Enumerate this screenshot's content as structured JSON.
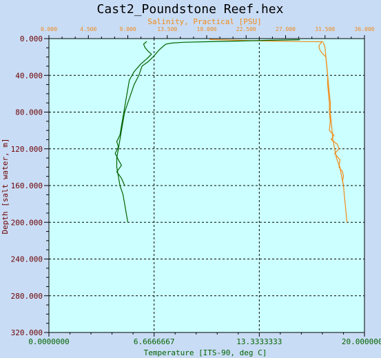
{
  "window": {
    "title": "Cast2_Poundstone Reef.hex"
  },
  "colors": {
    "background": "#c9dcf5",
    "plot_bg": "#ccffff",
    "salinity": "#f08a18",
    "temperature": "#006400",
    "depth_axis": "#6b0000",
    "title": "#000000"
  },
  "chart_data": {
    "type": "line",
    "title": "Cast2_Poundstone Reef.hex",
    "grid": true,
    "y_axis": {
      "label": "Depth [salt water, m]",
      "range": [
        0,
        320
      ],
      "inverted": true,
      "ticks": [
        0,
        40,
        80,
        120,
        160,
        200,
        240,
        280,
        320
      ],
      "tick_labels": [
        "0.000",
        "40.000",
        "80.000",
        "120.000",
        "160.000",
        "200.000",
        "240.000",
        "280.000",
        "320.000"
      ]
    },
    "x_axes": [
      {
        "id": "salinity",
        "position": "top",
        "label": "Salinity, Practical [PSU]",
        "range": [
          0,
          36
        ],
        "ticks": [
          0,
          4.5,
          9,
          13.5,
          18,
          22.5,
          27,
          31.5,
          36
        ],
        "tick_labels": [
          "0.000",
          "4.500",
          "9.000",
          "13.500",
          "18.000",
          "22.500",
          "27.000",
          "31.500",
          "36.000"
        ]
      },
      {
        "id": "temperature",
        "position": "bottom",
        "label": "Temperature [ITS-90, deg C]",
        "range": [
          0,
          20
        ],
        "ticks": [
          0,
          6.6666667,
          13.3333333,
          20
        ],
        "tick_labels": [
          "0.0000000",
          "6.6666667",
          "13.3333333",
          "20.0000000"
        ]
      }
    ],
    "series": [
      {
        "axis": "salinity",
        "points": [
          [
            18.3,
            1.0
          ],
          [
            20.5,
            1.5
          ],
          [
            23.0,
            2.2
          ],
          [
            26.0,
            2.8
          ],
          [
            29.2,
            3.2
          ],
          [
            31.2,
            3.4
          ],
          [
            31.0,
            5
          ],
          [
            30.8,
            8
          ],
          [
            30.9,
            12
          ],
          [
            31.1,
            15
          ],
          [
            31.3,
            17
          ],
          [
            31.6,
            20
          ],
          [
            31.7,
            30
          ],
          [
            31.8,
            40
          ],
          [
            31.9,
            50
          ],
          [
            32.0,
            60
          ],
          [
            32.1,
            70
          ],
          [
            32.1,
            80
          ],
          [
            32.2,
            90
          ],
          [
            32.3,
            100
          ],
          [
            32.4,
            110
          ],
          [
            32.6,
            120
          ],
          [
            32.8,
            130
          ],
          [
            33.0,
            135
          ],
          [
            33.2,
            140
          ],
          [
            33.3,
            145
          ],
          [
            33.4,
            150
          ],
          [
            33.5,
            155
          ],
          [
            33.6,
            160
          ],
          [
            33.7,
            170
          ],
          [
            33.8,
            180
          ],
          [
            33.9,
            190
          ],
          [
            34.0,
            200
          ]
        ]
      },
      {
        "axis": "salinity",
        "points": [
          [
            31.3,
            4
          ],
          [
            31.5,
            10
          ],
          [
            31.6,
            20
          ],
          [
            31.7,
            30
          ],
          [
            31.8,
            40
          ],
          [
            31.8,
            50
          ],
          [
            31.9,
            60
          ],
          [
            32.0,
            70
          ],
          [
            32.0,
            80
          ],
          [
            32.1,
            90
          ],
          [
            32.0,
            100
          ],
          [
            32.5,
            105
          ],
          [
            32.2,
            110
          ],
          [
            32.9,
            115
          ],
          [
            33.1,
            120
          ],
          [
            32.6,
            125
          ],
          [
            33.2,
            132
          ],
          [
            33.1,
            140
          ],
          [
            33.5,
            145
          ],
          [
            33.6,
            150
          ],
          [
            33.5,
            155
          ],
          [
            33.6,
            160
          ]
        ]
      },
      {
        "axis": "temperature",
        "points": [
          [
            15.9,
            1.2
          ],
          [
            14.0,
            1.8
          ],
          [
            12.0,
            2.6
          ],
          [
            10.0,
            3.4
          ],
          [
            8.5,
            4.0
          ],
          [
            7.8,
            4.8
          ],
          [
            7.4,
            6.0
          ],
          [
            7.2,
            9
          ],
          [
            7.0,
            12
          ],
          [
            6.8,
            16
          ],
          [
            6.6,
            20
          ],
          [
            6.3,
            25
          ],
          [
            5.9,
            30
          ],
          [
            5.7,
            40
          ],
          [
            5.4,
            50
          ],
          [
            5.2,
            60
          ],
          [
            5.0,
            70
          ],
          [
            4.8,
            80
          ],
          [
            4.7,
            90
          ],
          [
            4.6,
            100
          ],
          [
            4.5,
            110
          ],
          [
            4.4,
            120
          ],
          [
            4.3,
            130
          ],
          [
            4.3,
            140
          ],
          [
            4.4,
            150
          ],
          [
            4.5,
            160
          ],
          [
            4.7,
            170
          ],
          [
            4.8,
            180
          ],
          [
            4.9,
            190
          ],
          [
            5.0,
            200
          ]
        ]
      },
      {
        "axis": "temperature",
        "points": [
          [
            6.2,
            3
          ],
          [
            6.0,
            6
          ],
          [
            6.1,
            10
          ],
          [
            6.3,
            14
          ],
          [
            6.5,
            17
          ],
          [
            6.2,
            22
          ],
          [
            5.8,
            28
          ],
          [
            5.4,
            36
          ],
          [
            5.1,
            45
          ],
          [
            5.0,
            55
          ],
          [
            4.9,
            65
          ],
          [
            4.8,
            75
          ],
          [
            4.7,
            85
          ],
          [
            4.6,
            95
          ],
          [
            4.5,
            105
          ],
          [
            4.3,
            112
          ],
          [
            4.4,
            118
          ],
          [
            4.2,
            125
          ],
          [
            4.4,
            132
          ],
          [
            4.6,
            138
          ],
          [
            4.3,
            145
          ],
          [
            4.6,
            152
          ],
          [
            4.8,
            160
          ]
        ]
      }
    ]
  }
}
